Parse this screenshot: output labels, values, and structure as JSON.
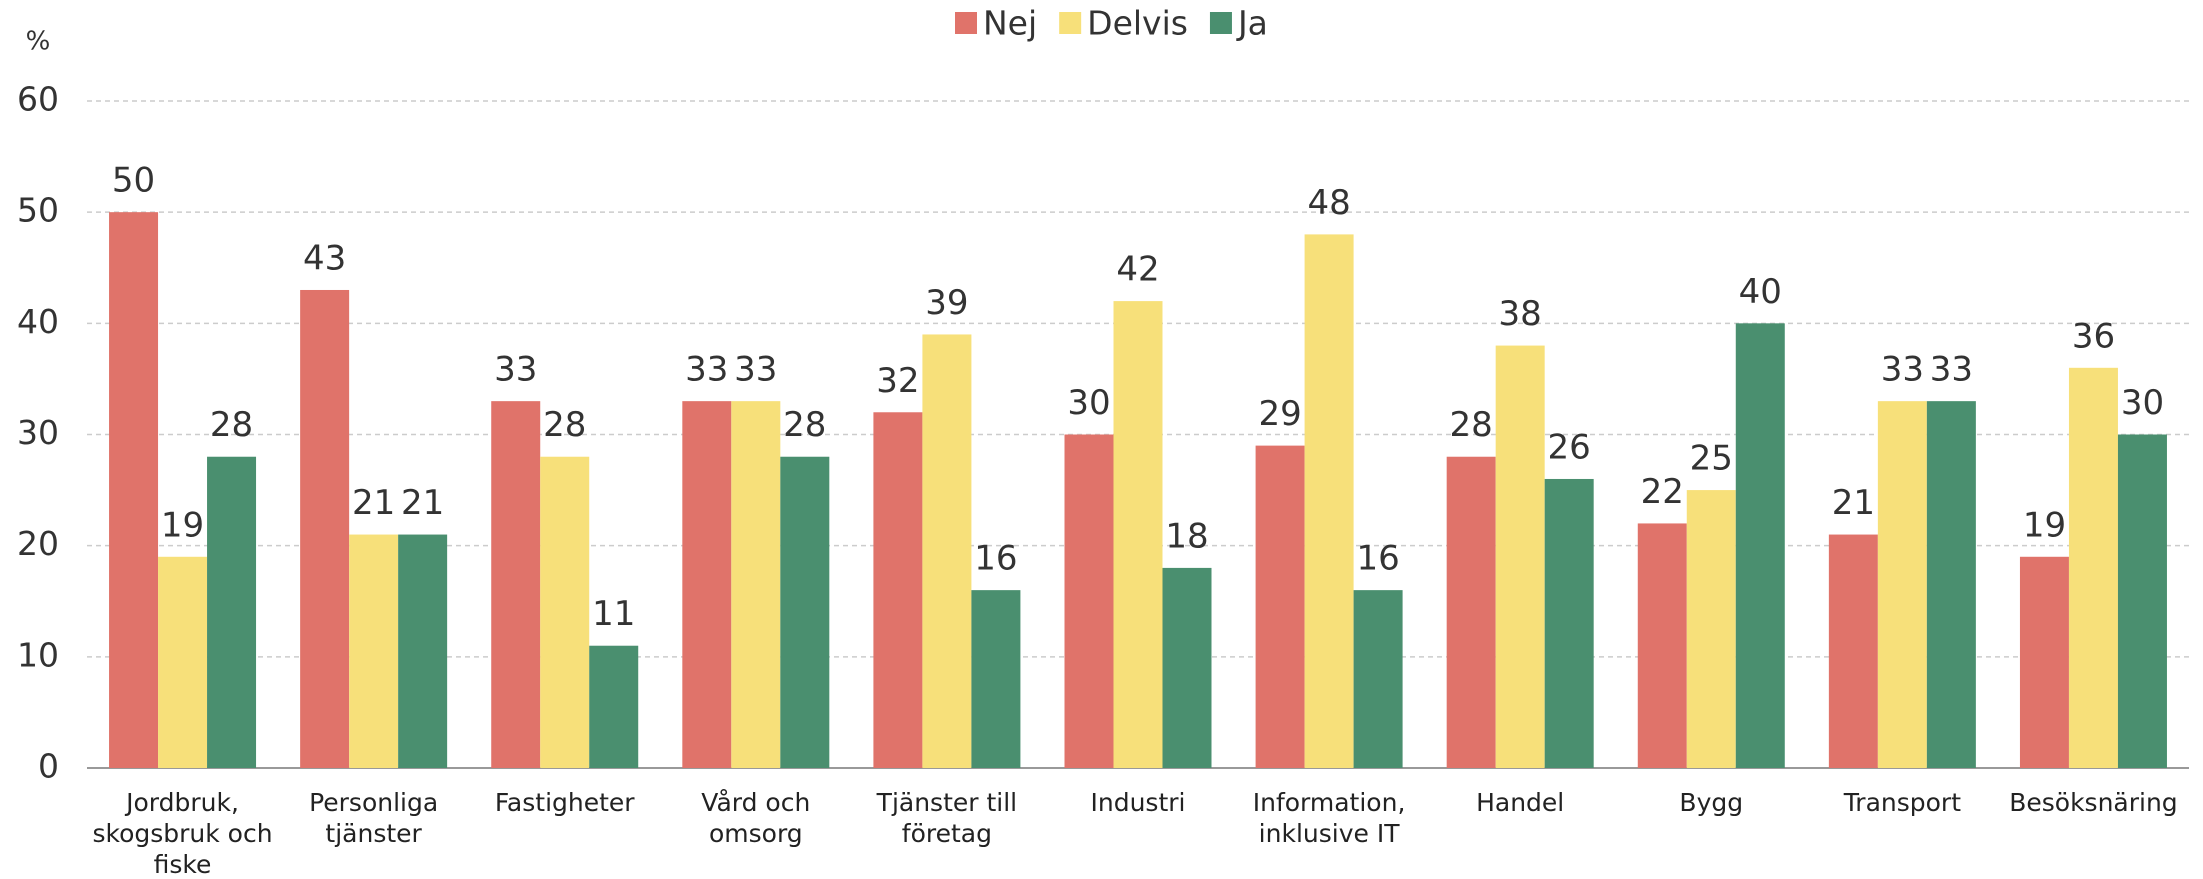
{
  "chart_data": {
    "type": "bar",
    "y_label": "%",
    "categories": [
      "Jordbruk, skogsbruk och fiske",
      "Personliga tjänster",
      "Fastigheter",
      "Vård och omsorg",
      "Tjänster till företag",
      "Industri",
      "Information, inklusive IT",
      "Handel",
      "Bygg",
      "Transport",
      "Besöksnäring"
    ],
    "series": [
      {
        "name": "Nej",
        "color": "#e0736a",
        "values": [
          50,
          43,
          33,
          33,
          32,
          30,
          29,
          28,
          22,
          21,
          19
        ]
      },
      {
        "name": "Delvis",
        "color": "#f7e07a",
        "values": [
          19,
          21,
          28,
          33,
          39,
          42,
          48,
          38,
          25,
          33,
          36
        ]
      },
      {
        "name": "Ja",
        "color": "#4a8f6f",
        "values": [
          28,
          21,
          11,
          28,
          16,
          18,
          16,
          26,
          40,
          33,
          30
        ]
      }
    ],
    "ylim": [
      0,
      60
    ],
    "yticks": [
      0,
      10,
      20,
      30,
      40,
      50,
      60
    ],
    "grid": true,
    "legend": "top"
  }
}
